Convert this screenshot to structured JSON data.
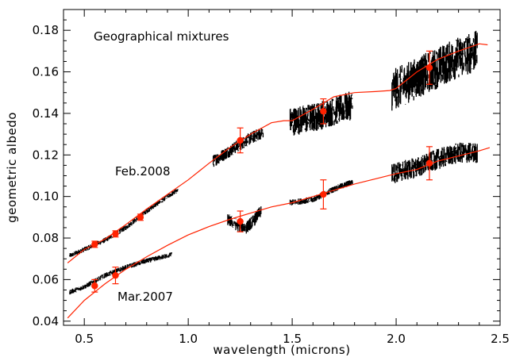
{
  "chart_data": {
    "type": "scatter",
    "title": "",
    "xlabel": "wavelength (microns)",
    "ylabel": "geometric albedo",
    "xlim": [
      0.4,
      2.5
    ],
    "ylim": [
      0.038,
      0.19
    ],
    "grid": false,
    "x_ticks": [
      0.5,
      1.0,
      1.5,
      2.0,
      2.5
    ],
    "x_tick_labels": [
      "0.5",
      "1.0",
      "1.5",
      "2.0",
      "2.5"
    ],
    "y_ticks": [
      0.04,
      0.06,
      0.08,
      0.1,
      0.12,
      0.14,
      0.16,
      0.18
    ],
    "y_tick_labels": [
      "0.04",
      "0.06",
      "0.08",
      "0.10",
      "0.12",
      "0.14",
      "0.16",
      "0.18"
    ],
    "annotations": [
      "Geographical mixtures",
      "Feb.2008",
      "Mar.2007"
    ],
    "colors": {
      "data": "#000000",
      "model": "#ff2200",
      "points": "#ff2200"
    },
    "series": [
      {
        "name": "Feb.2008",
        "spectrum_segments": [
          {
            "x": [
              0.43,
              0.5,
              0.6,
              0.7,
              0.8,
              0.9,
              0.95
            ],
            "y": [
              0.0715,
              0.0745,
              0.079,
              0.085,
              0.093,
              0.1,
              0.103
            ],
            "scatter": 0.0012
          },
          {
            "x": [
              1.12,
              1.2,
              1.28,
              1.36
            ],
            "y": [
              0.117,
              0.122,
              0.127,
              0.131
            ],
            "scatter": 0.003
          },
          {
            "x": [
              1.49,
              1.6,
              1.7,
              1.79
            ],
            "y": [
              0.136,
              0.138,
              0.141,
              0.144
            ],
            "scatter": 0.007
          },
          {
            "x": [
              1.98,
              2.1,
              2.2,
              2.3,
              2.39
            ],
            "y": [
              0.151,
              0.157,
              0.162,
              0.167,
              0.17
            ],
            "scatter": 0.01
          }
        ],
        "model": {
          "x": [
            0.42,
            0.5,
            0.6,
            0.7,
            0.8,
            0.9,
            1.0,
            1.1,
            1.2,
            1.3,
            1.4,
            1.46,
            1.5,
            1.6,
            1.7,
            1.8,
            1.9,
            1.97,
            2.0,
            2.1,
            2.2,
            2.3,
            2.4,
            2.44
          ],
          "y": [
            0.068,
            0.0745,
            0.0795,
            0.0865,
            0.094,
            0.101,
            0.108,
            0.116,
            0.1235,
            0.13,
            0.1355,
            0.1365,
            0.1365,
            0.142,
            0.148,
            0.15,
            0.1505,
            0.151,
            0.152,
            0.16,
            0.166,
            0.17,
            0.1735,
            0.173
          ]
        },
        "photometry": [
          {
            "x": 0.55,
            "y": 0.077,
            "err": 0.0015
          },
          {
            "x": 0.65,
            "y": 0.082,
            "err": 0.0015
          },
          {
            "x": 0.77,
            "y": 0.09,
            "err": 0.0015
          },
          {
            "x": 1.25,
            "y": 0.127,
            "err": 0.006
          },
          {
            "x": 1.65,
            "y": 0.141,
            "err": 0.006
          },
          {
            "x": 2.16,
            "y": 0.162,
            "err": 0.008
          }
        ]
      },
      {
        "name": "Mar.2007",
        "spectrum_segments": [
          {
            "x": [
              0.43,
              0.5,
              0.6,
              0.7,
              0.8,
              0.92
            ],
            "y": [
              0.054,
              0.0565,
              0.062,
              0.066,
              0.069,
              0.072
            ],
            "scatter": 0.0012
          },
          {
            "x": [
              1.19,
              1.24,
              1.28,
              1.32,
              1.35
            ],
            "y": [
              0.089,
              0.086,
              0.085,
              0.089,
              0.093
            ],
            "scatter": 0.003
          },
          {
            "x": [
              1.49,
              1.6,
              1.7,
              1.79
            ],
            "y": [
              0.097,
              0.0985,
              0.1035,
              0.107
            ],
            "scatter": 0.0015
          },
          {
            "x": [
              1.98,
              2.1,
              2.2,
              2.3,
              2.39
            ],
            "y": [
              0.111,
              0.114,
              0.118,
              0.121,
              0.121
            ],
            "scatter": 0.005
          }
        ],
        "model": {
          "x": [
            0.42,
            0.5,
            0.6,
            0.7,
            0.8,
            0.9,
            1.0,
            1.1,
            1.2,
            1.3,
            1.4,
            1.5,
            1.6,
            1.7,
            1.8,
            1.9,
            2.0,
            2.1,
            2.2,
            2.3,
            2.4,
            2.45
          ],
          "y": [
            0.0415,
            0.05,
            0.058,
            0.065,
            0.071,
            0.0765,
            0.0815,
            0.0855,
            0.089,
            0.092,
            0.095,
            0.097,
            0.1,
            0.103,
            0.106,
            0.1085,
            0.111,
            0.113,
            0.117,
            0.1195,
            0.122,
            0.1235
          ]
        },
        "photometry": [
          {
            "x": 0.55,
            "y": 0.057,
            "err": 0.003
          },
          {
            "x": 0.65,
            "y": 0.062,
            "err": 0.004
          },
          {
            "x": 1.25,
            "y": 0.088,
            "err": 0.005
          },
          {
            "x": 1.65,
            "y": 0.101,
            "err": 0.007
          },
          {
            "x": 2.16,
            "y": 0.116,
            "err": 0.008
          }
        ]
      }
    ]
  }
}
